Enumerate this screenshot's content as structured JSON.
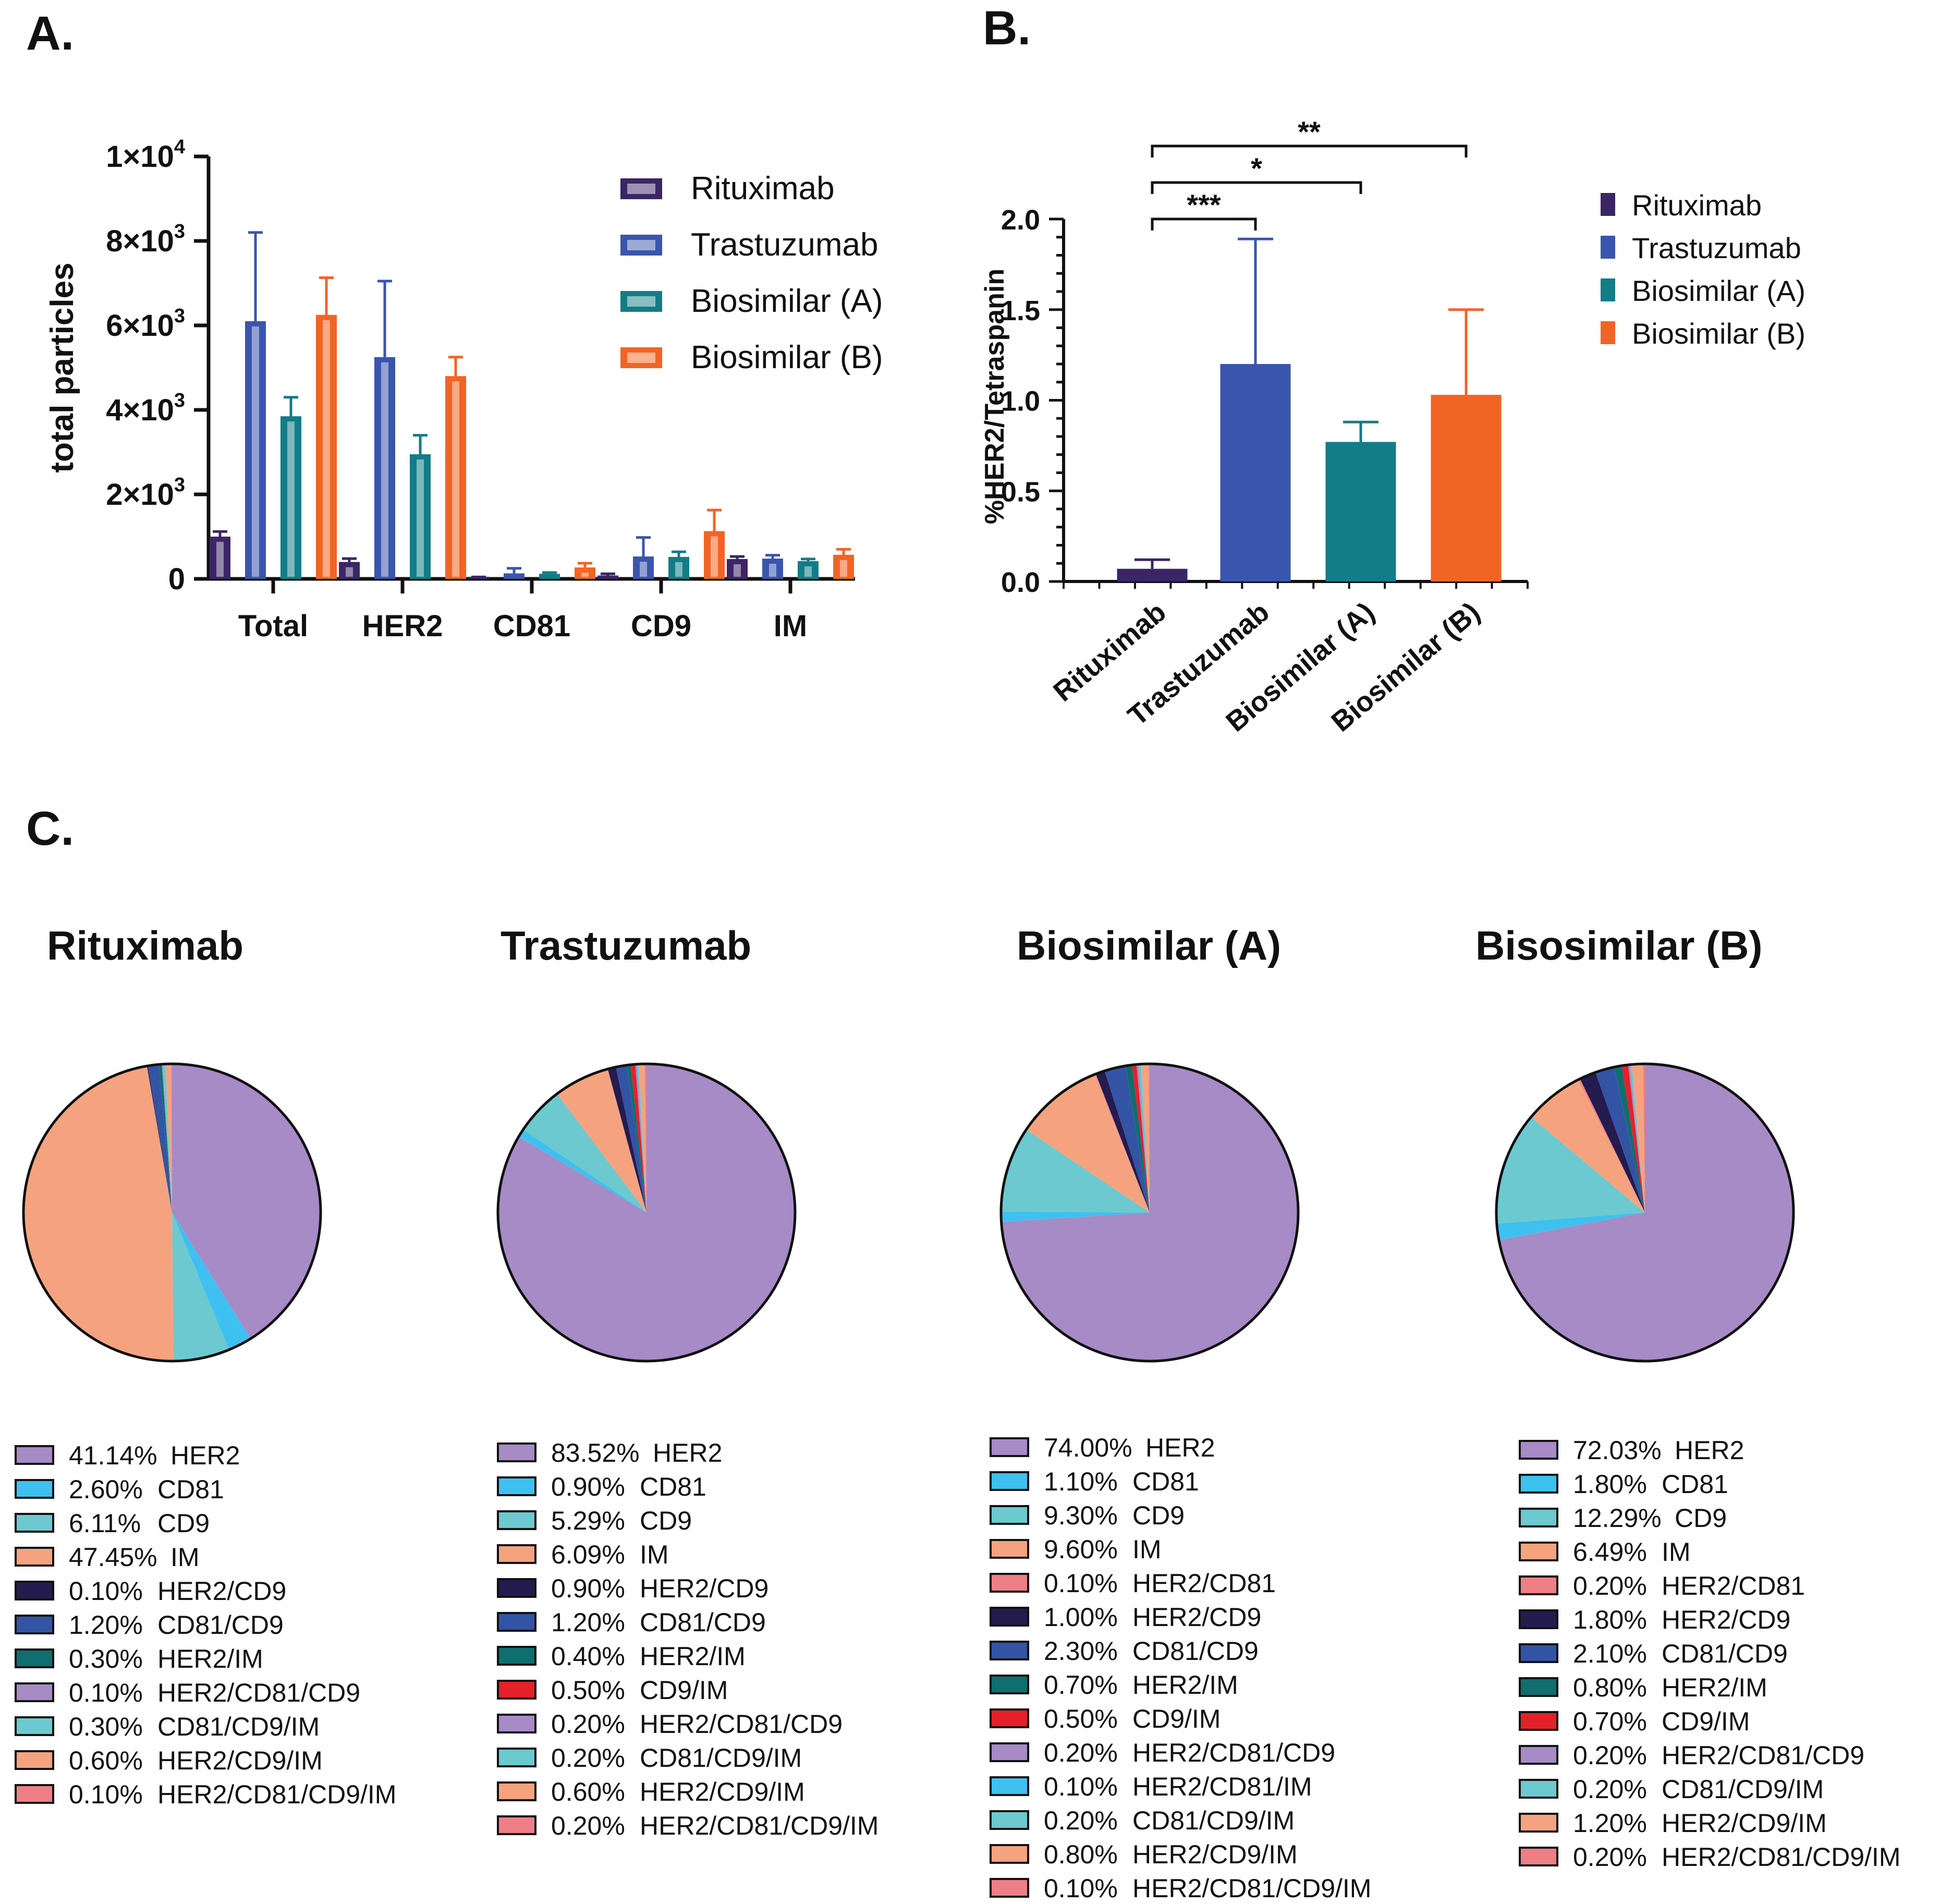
{
  "colors": {
    "rituximab": "#3b2566",
    "trastuzumab": "#3a55ad",
    "biosimilar_a": "#127d87",
    "biosimilar_b": "#f26424",
    "HER2": "#a68bc6",
    "CD81": "#3ec1f0",
    "CD9": "#6cc9cf",
    "IM": "#f5a37f",
    "HER2/CD81": "#ef7f86",
    "HER2/CD9": "#241b4f",
    "CD81/CD9": "#3354a5",
    "HER2/IM": "#0f6e70",
    "CD9/IM": "#e52028",
    "HER2/CD81/CD9": "#a68bc6",
    "HER2/CD81/IM": "#3ec1f0",
    "CD81/CD9/IM": "#6cc9cf",
    "HER2/CD9/IM": "#f5a37f",
    "HER2/CD81/CD9/IM": "#ef7f86"
  },
  "panels": {
    "a": "A.",
    "b": "B.",
    "c": "C."
  },
  "chart_data": [
    {
      "id": "A",
      "type": "bar",
      "ylabel": "total particles",
      "ylim": [
        0,
        10000
      ],
      "yticks": [
        {
          "value": 0,
          "label": "0"
        },
        {
          "value": 2000,
          "label": "2×10",
          "exp": "3"
        },
        {
          "value": 4000,
          "label": "4×10",
          "exp": "3"
        },
        {
          "value": 6000,
          "label": "6×10",
          "exp": "3"
        },
        {
          "value": 8000,
          "label": "8×10",
          "exp": "3"
        },
        {
          "value": 10000,
          "label": "1×10",
          "exp": "4"
        }
      ],
      "categories": [
        "Total",
        "HER2",
        "CD81",
        "CD9",
        "IM"
      ],
      "series": [
        {
          "name": "Rituximab",
          "values": [
            1000,
            400,
            30,
            80,
            470
          ],
          "errors": [
            120,
            80,
            15,
            40,
            60
          ]
        },
        {
          "name": "Trastuzumab",
          "values": [
            6100,
            5250,
            130,
            530,
            480
          ],
          "errors": [
            2100,
            1800,
            120,
            450,
            80
          ]
        },
        {
          "name": "Biosimilar (A)",
          "values": [
            3850,
            2950,
            120,
            520,
            420
          ],
          "errors": [
            450,
            450,
            30,
            120,
            50
          ]
        },
        {
          "name": "Biosimilar (B)",
          "values": [
            6250,
            4800,
            270,
            1130,
            570
          ],
          "errors": [
            880,
            450,
            100,
            500,
            130
          ]
        }
      ],
      "legend": [
        "Rituximab",
        "Trastuzumab",
        "Biosimilar (A)",
        "Biosimilar (B)"
      ]
    },
    {
      "id": "B",
      "type": "bar",
      "ylabel": "%HER2/Tetraspanin",
      "ylim": [
        0,
        2.0
      ],
      "yticks": [
        "0.0",
        "0.5",
        "1.0",
        "1.5",
        "2.0"
      ],
      "categories": [
        "Rituximab",
        "Trastuzumab",
        "Biosimilar (A)",
        "Biosimilar (B)"
      ],
      "values": [
        0.07,
        1.2,
        0.77,
        1.03
      ],
      "errors": [
        0.05,
        0.69,
        0.11,
        0.47
      ],
      "significance": [
        {
          "from": 0,
          "to": 1,
          "label": "***"
        },
        {
          "from": 0,
          "to": 2,
          "label": "*"
        },
        {
          "from": 0,
          "to": 3,
          "label": "**"
        }
      ],
      "legend": [
        "Rituximab",
        "Trastuzumab",
        "Biosimilar (A)",
        "Biosimilar (B)"
      ]
    },
    {
      "id": "C",
      "type": "pie",
      "pies": [
        {
          "title": "Rituximab",
          "slices": [
            {
              "label": "HER2",
              "value": 41.14,
              "text": "41.14%"
            },
            {
              "label": "CD81",
              "value": 2.6,
              "text": "2.60%"
            },
            {
              "label": "CD9",
              "value": 6.11,
              "text": "6.11%"
            },
            {
              "label": "IM",
              "value": 47.45,
              "text": "47.45%"
            },
            {
              "label": "HER2/CD9",
              "value": 0.1,
              "text": "0.10%"
            },
            {
              "label": "CD81/CD9",
              "value": 1.2,
              "text": "1.20%"
            },
            {
              "label": "HER2/IM",
              "value": 0.3,
              "text": "0.30%"
            },
            {
              "label": "HER2/CD81/CD9",
              "value": 0.1,
              "text": "0.10%"
            },
            {
              "label": "CD81/CD9/IM",
              "value": 0.3,
              "text": "0.30%"
            },
            {
              "label": "HER2/CD9/IM",
              "value": 0.6,
              "text": "0.60%"
            },
            {
              "label": "HER2/CD81/CD9/IM",
              "value": 0.1,
              "text": "0.10%"
            }
          ]
        },
        {
          "title": "Trastuzumab",
          "slices": [
            {
              "label": "HER2",
              "value": 83.52,
              "text": "83.52%"
            },
            {
              "label": "CD81",
              "value": 0.9,
              "text": "0.90%"
            },
            {
              "label": "CD9",
              "value": 5.29,
              "text": "5.29%"
            },
            {
              "label": "IM",
              "value": 6.09,
              "text": "6.09%"
            },
            {
              "label": "HER2/CD9",
              "value": 0.9,
              "text": "0.90%"
            },
            {
              "label": "CD81/CD9",
              "value": 1.2,
              "text": "1.20%"
            },
            {
              "label": "HER2/IM",
              "value": 0.4,
              "text": "0.40%"
            },
            {
              "label": "CD9/IM",
              "value": 0.5,
              "text": "0.50%"
            },
            {
              "label": "HER2/CD81/CD9",
              "value": 0.2,
              "text": "0.20%"
            },
            {
              "label": "CD81/CD9/IM",
              "value": 0.2,
              "text": "0.20%"
            },
            {
              "label": "HER2/CD9/IM",
              "value": 0.6,
              "text": "0.60%"
            },
            {
              "label": "HER2/CD81/CD9/IM",
              "value": 0.2,
              "text": "0.20%"
            }
          ]
        },
        {
          "title": "Biosimilar (A)",
          "slices": [
            {
              "label": "HER2",
              "value": 74.0,
              "text": "74.00%"
            },
            {
              "label": "CD81",
              "value": 1.1,
              "text": "1.10%"
            },
            {
              "label": "CD9",
              "value": 9.3,
              "text": "9.30%"
            },
            {
              "label": "IM",
              "value": 9.6,
              "text": "9.60%"
            },
            {
              "label": "HER2/CD81",
              "value": 0.1,
              "text": "0.10%"
            },
            {
              "label": "HER2/CD9",
              "value": 1.0,
              "text": "1.00%"
            },
            {
              "label": "CD81/CD9",
              "value": 2.3,
              "text": "2.30%"
            },
            {
              "label": "HER2/IM",
              "value": 0.7,
              "text": "0.70%"
            },
            {
              "label": "CD9/IM",
              "value": 0.5,
              "text": "0.50%"
            },
            {
              "label": "HER2/CD81/CD9",
              "value": 0.2,
              "text": "0.20%"
            },
            {
              "label": "HER2/CD81/IM",
              "value": 0.1,
              "text": "0.10%"
            },
            {
              "label": "CD81/CD9/IM",
              "value": 0.2,
              "text": "0.20%"
            },
            {
              "label": "HER2/CD9/IM",
              "value": 0.8,
              "text": "0.80%"
            },
            {
              "label": "HER2/CD81/CD9/IM",
              "value": 0.1,
              "text": "0.10%"
            }
          ]
        },
        {
          "title": "Bisosimilar (B)",
          "slices": [
            {
              "label": "HER2",
              "value": 72.03,
              "text": "72.03%"
            },
            {
              "label": "CD81",
              "value": 1.8,
              "text": "1.80%"
            },
            {
              "label": "CD9",
              "value": 12.29,
              "text": "12.29%"
            },
            {
              "label": "IM",
              "value": 6.49,
              "text": "6.49%"
            },
            {
              "label": "HER2/CD81",
              "value": 0.2,
              "text": "0.20%"
            },
            {
              "label": "HER2/CD9",
              "value": 1.8,
              "text": "1.80%"
            },
            {
              "label": "CD81/CD9",
              "value": 2.1,
              "text": "2.10%"
            },
            {
              "label": "HER2/IM",
              "value": 0.8,
              "text": "0.80%"
            },
            {
              "label": "CD9/IM",
              "value": 0.7,
              "text": "0.70%"
            },
            {
              "label": "HER2/CD81/CD9",
              "value": 0.2,
              "text": "0.20%"
            },
            {
              "label": "CD81/CD9/IM",
              "value": 0.2,
              "text": "0.20%"
            },
            {
              "label": "HER2/CD9/IM",
              "value": 1.2,
              "text": "1.20%"
            },
            {
              "label": "HER2/CD81/CD9/IM",
              "value": 0.2,
              "text": "0.20%"
            }
          ]
        }
      ]
    }
  ]
}
